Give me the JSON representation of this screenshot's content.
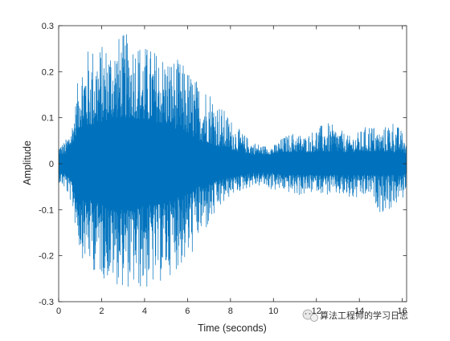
{
  "chart_data": {
    "type": "line",
    "title": "",
    "xlabel": "Time (seconds)",
    "ylabel": "Amplitude",
    "xlim": [
      0,
      16.2
    ],
    "ylim": [
      -0.3,
      0.3
    ],
    "x_ticks": [
      0,
      2,
      4,
      6,
      8,
      10,
      12,
      14,
      16
    ],
    "y_ticks": [
      -0.3,
      -0.2,
      -0.1,
      0,
      0.1,
      0.2,
      0.3
    ],
    "grid": false,
    "legend": "none",
    "series": [
      {
        "color": "#0072BD",
        "envelope": {
          "x": [
            0,
            0.3,
            0.6,
            0.8,
            1.0,
            1.5,
            2.0,
            2.5,
            3.0,
            3.5,
            4.0,
            4.5,
            5.0,
            5.5,
            6.0,
            6.5,
            7.0,
            7.5,
            8.0,
            8.5,
            9.0,
            9.5,
            10.0,
            10.5,
            11.0,
            11.5,
            12.0,
            12.5,
            13.0,
            13.5,
            14.0,
            14.5,
            15.0,
            15.5,
            16.0,
            16.2
          ],
          "upper": [
            0.04,
            0.05,
            0.08,
            0.14,
            0.23,
            0.26,
            0.26,
            0.27,
            0.285,
            0.28,
            0.26,
            0.25,
            0.24,
            0.23,
            0.21,
            0.18,
            0.17,
            0.13,
            0.1,
            0.07,
            0.05,
            0.04,
            0.04,
            0.06,
            0.07,
            0.06,
            0.08,
            0.09,
            0.08,
            0.06,
            0.07,
            0.09,
            0.07,
            0.1,
            0.07,
            0.05
          ],
          "lower": [
            -0.04,
            -0.06,
            -0.09,
            -0.15,
            -0.2,
            -0.23,
            -0.25,
            -0.26,
            -0.27,
            -0.275,
            -0.28,
            -0.27,
            -0.25,
            -0.23,
            -0.22,
            -0.17,
            -0.14,
            -0.1,
            -0.07,
            -0.06,
            -0.05,
            -0.05,
            -0.06,
            -0.06,
            -0.07,
            -0.07,
            -0.06,
            -0.07,
            -0.07,
            -0.08,
            -0.08,
            -0.07,
            -0.11,
            -0.1,
            -0.08,
            -0.05
          ],
          "core": [
            0.02,
            0.02,
            0.04,
            0.06,
            0.08,
            0.08,
            0.09,
            0.1,
            0.1,
            0.1,
            0.09,
            0.09,
            0.085,
            0.075,
            0.065,
            0.05,
            0.045,
            0.035,
            0.03,
            0.025,
            0.02,
            0.02,
            0.02,
            0.025,
            0.025,
            0.025,
            0.025,
            0.025,
            0.025,
            0.025,
            0.025,
            0.025,
            0.025,
            0.025,
            0.025,
            0.02
          ]
        }
      }
    ]
  },
  "watermark": {
    "text": "算法工程师的学习日志"
  }
}
